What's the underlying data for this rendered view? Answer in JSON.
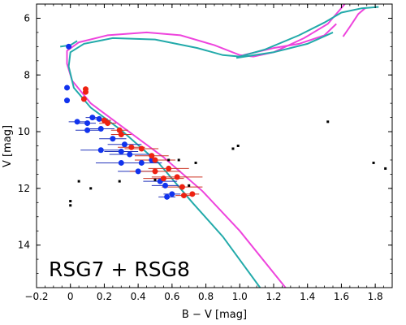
{
  "chart_data": {
    "type": "scatter",
    "xlabel": "B − V [mag]",
    "ylabel": "V [mag]",
    "xlim": [
      -0.2,
      1.9
    ],
    "ylim": [
      15.5,
      5.5
    ],
    "y_inverted": true,
    "x_ticks": [
      "−0.2",
      "0",
      "0.2",
      "0.4",
      "0.6",
      "0.8",
      "1.0",
      "1.2",
      "1.4",
      "1.6",
      "1.8"
    ],
    "x_tick_values": [
      -0.2,
      0,
      0.2,
      0.4,
      0.6,
      0.8,
      1.0,
      1.2,
      1.4,
      1.6,
      1.8
    ],
    "y_ticks": [
      "6",
      "8",
      "10",
      "12",
      "14"
    ],
    "y_tick_values": [
      6,
      8,
      10,
      12,
      14
    ],
    "annotation": "RSG7 + RSG8",
    "colors": {
      "isochrone_magenta": "#ee44dd",
      "isochrone_teal": "#22aaaa",
      "blue_points": "#1133ee",
      "red_points": "#ee2211",
      "black_points": "#000000",
      "blue_err": "#2233bb",
      "red_err": "#cc3322"
    },
    "isochrones": [
      {
        "color_key": "isochrone_magenta",
        "points": [
          [
            1.27,
            15.5
          ],
          [
            1.0,
            13.5
          ],
          [
            0.78,
            12.1
          ],
          [
            0.55,
            10.9
          ],
          [
            0.3,
            9.8
          ],
          [
            0.12,
            9.0
          ],
          [
            0.01,
            8.2
          ],
          [
            -0.02,
            7.6
          ],
          [
            -0.02,
            7.15
          ],
          [
            0.05,
            6.85
          ],
          [
            0.22,
            6.6
          ],
          [
            0.45,
            6.5
          ],
          [
            0.65,
            6.6
          ],
          [
            0.85,
            6.95
          ],
          [
            1.0,
            7.3
          ],
          [
            1.08,
            7.35
          ],
          [
            1.2,
            7.2
          ],
          [
            1.38,
            6.7
          ],
          [
            1.52,
            6.2
          ],
          [
            1.62,
            5.5
          ]
        ]
      },
      {
        "color_key": "isochrone_magenta",
        "points": [
          [
            1.02,
            7.3
          ],
          [
            1.2,
            7.05
          ],
          [
            1.35,
            6.9
          ],
          [
            1.5,
            6.6
          ],
          [
            1.57,
            6.2
          ]
        ]
      },
      {
        "color_key": "isochrone_magenta",
        "points": [
          [
            1.61,
            6.65
          ],
          [
            1.65,
            6.3
          ],
          [
            1.7,
            5.85
          ],
          [
            1.74,
            5.65
          ]
        ]
      },
      {
        "color_key": "isochrone_teal",
        "points": [
          [
            1.12,
            15.5
          ],
          [
            0.9,
            13.7
          ],
          [
            0.72,
            12.5
          ],
          [
            0.52,
            11.1
          ],
          [
            0.3,
            9.95
          ],
          [
            0.12,
            9.15
          ],
          [
            0.02,
            8.45
          ],
          [
            -0.01,
            7.7
          ],
          [
            0.0,
            7.2
          ],
          [
            0.08,
            6.9
          ],
          [
            0.25,
            6.7
          ],
          [
            0.5,
            6.75
          ],
          [
            0.75,
            7.05
          ],
          [
            0.9,
            7.3
          ],
          [
            1.0,
            7.35
          ],
          [
            1.15,
            7.1
          ],
          [
            1.35,
            6.6
          ],
          [
            1.5,
            6.15
          ],
          [
            1.6,
            5.8
          ],
          [
            1.72,
            5.65
          ],
          [
            1.82,
            5.6
          ]
        ]
      },
      {
        "color_key": "isochrone_teal",
        "points": [
          [
            0.98,
            7.4
          ],
          [
            1.2,
            7.2
          ],
          [
            1.4,
            6.9
          ],
          [
            1.55,
            6.5
          ]
        ]
      },
      {
        "color_key": "isochrone_teal",
        "points": [
          [
            -0.06,
            7.0
          ],
          [
            0.0,
            6.95
          ],
          [
            0.04,
            6.8
          ]
        ]
      }
    ],
    "series": [
      {
        "color_key": "blue_points",
        "err_key": "blue_err",
        "points": [
          {
            "x": -0.01,
            "y": 7.0,
            "err": 0.0
          },
          {
            "x": -0.02,
            "y": 8.45,
            "err": 0.0
          },
          {
            "x": -0.02,
            "y": 8.9,
            "err": 0.0
          },
          {
            "x": 0.04,
            "y": 9.65,
            "err": 0.05
          },
          {
            "x": 0.1,
            "y": 9.7,
            "err": 0.05
          },
          {
            "x": 0.13,
            "y": 9.5,
            "err": 0.04
          },
          {
            "x": 0.17,
            "y": 9.55,
            "err": 0.05
          },
          {
            "x": 0.18,
            "y": 9.9,
            "err": 0.08
          },
          {
            "x": 0.1,
            "y": 9.95,
            "err": 0.07
          },
          {
            "x": 0.25,
            "y": 10.25,
            "err": 0.08
          },
          {
            "x": 0.32,
            "y": 10.45,
            "err": 0.1
          },
          {
            "x": 0.18,
            "y": 10.65,
            "err": 0.12
          },
          {
            "x": 0.3,
            "y": 10.7,
            "err": 0.1
          },
          {
            "x": 0.35,
            "y": 10.8,
            "err": 0.12
          },
          {
            "x": 0.3,
            "y": 11.1,
            "err": 0.15
          },
          {
            "x": 0.42,
            "y": 11.1,
            "err": 0.12
          },
          {
            "x": 0.48,
            "y": 11.0,
            "err": 0.1
          },
          {
            "x": 0.4,
            "y": 11.4,
            "err": 0.12
          },
          {
            "x": 0.53,
            "y": 11.75,
            "err": 0.1
          },
          {
            "x": 0.56,
            "y": 11.9,
            "err": 0.08
          },
          {
            "x": 0.57,
            "y": 12.3,
            "err": 0.05
          },
          {
            "x": 0.6,
            "y": 12.2,
            "err": 0.05
          }
        ]
      },
      {
        "color_key": "red_points",
        "err_key": "red_err",
        "points": [
          {
            "x": 0.09,
            "y": 8.5,
            "err": 0.0
          },
          {
            "x": 0.09,
            "y": 8.6,
            "err": 0.0
          },
          {
            "x": 0.08,
            "y": 8.85,
            "err": 0.0
          },
          {
            "x": 0.2,
            "y": 9.6,
            "err": 0.04
          },
          {
            "x": 0.22,
            "y": 9.7,
            "err": 0.05
          },
          {
            "x": 0.29,
            "y": 9.95,
            "err": 0.05
          },
          {
            "x": 0.3,
            "y": 10.1,
            "err": 0.06
          },
          {
            "x": 0.36,
            "y": 10.55,
            "err": 0.08
          },
          {
            "x": 0.42,
            "y": 10.6,
            "err": 0.1
          },
          {
            "x": 0.48,
            "y": 10.85,
            "err": 0.1
          },
          {
            "x": 0.5,
            "y": 11.0,
            "err": 0.12
          },
          {
            "x": 0.58,
            "y": 11.3,
            "err": 0.12
          },
          {
            "x": 0.5,
            "y": 11.4,
            "err": 0.15
          },
          {
            "x": 0.55,
            "y": 11.65,
            "err": 0.12
          },
          {
            "x": 0.63,
            "y": 11.6,
            "err": 0.15
          },
          {
            "x": 0.66,
            "y": 11.95,
            "err": 0.12
          },
          {
            "x": 0.67,
            "y": 12.25,
            "err": 0.05
          },
          {
            "x": 0.72,
            "y": 12.2,
            "err": 0.04
          }
        ]
      },
      {
        "color_key": "black_points",
        "err_key": null,
        "points": [
          {
            "x": 0.0,
            "y": 12.45
          },
          {
            "x": 0.0,
            "y": 12.6
          },
          {
            "x": 0.05,
            "y": 11.75
          },
          {
            "x": 0.12,
            "y": 12.0
          },
          {
            "x": 0.29,
            "y": 11.75
          },
          {
            "x": 0.5,
            "y": 11.7
          },
          {
            "x": 0.58,
            "y": 11.0
          },
          {
            "x": 0.64,
            "y": 11.0
          },
          {
            "x": 0.7,
            "y": 11.9
          },
          {
            "x": 0.74,
            "y": 11.1
          },
          {
            "x": 0.96,
            "y": 10.6
          },
          {
            "x": 0.99,
            "y": 10.5
          },
          {
            "x": 1.52,
            "y": 9.65
          },
          {
            "x": 1.79,
            "y": 11.1
          },
          {
            "x": 1.86,
            "y": 11.3
          }
        ]
      }
    ]
  }
}
